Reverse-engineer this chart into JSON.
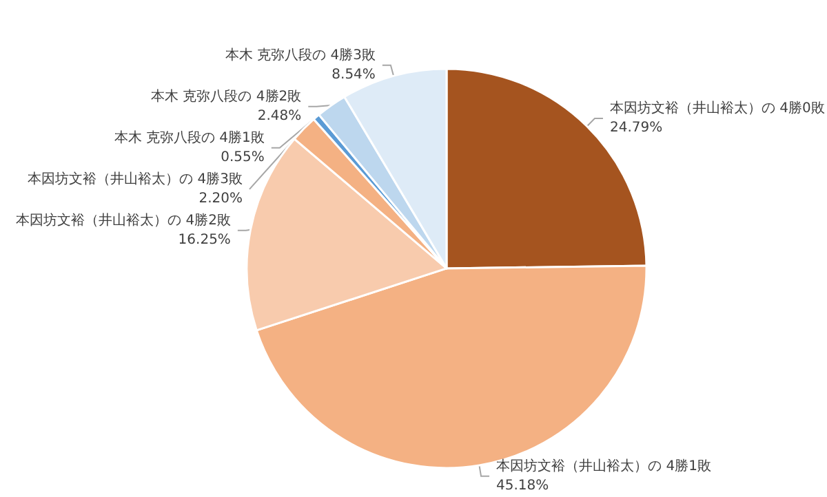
{
  "chart_data": {
    "type": "pie",
    "categories": [
      "本因坊文裕（井山裕太）の 4勝0敗",
      "本因坊文裕（井山裕太）の 4勝1敗",
      "本因坊文裕（井山裕太）の 4勝2敗",
      "本因坊文裕（井山裕太）の 4勝3敗",
      "本木 克弥八段の 4勝1敗",
      "本木 克弥八段の 4勝2敗",
      "本木 克弥八段の 4勝3敗"
    ],
    "values": [
      24.79,
      45.18,
      16.25,
      2.2,
      0.55,
      2.48,
      8.54
    ],
    "value_labels": [
      "24.79%",
      "45.18%",
      "16.25%",
      "2.20%",
      "0.55%",
      "2.48%",
      "8.54%"
    ],
    "colors": [
      "#a5541f",
      "#f4b183",
      "#f8cbad",
      "#f4b183",
      "#5b9bd5",
      "#bdd7ee",
      "#deebf7"
    ],
    "legend": false
  }
}
